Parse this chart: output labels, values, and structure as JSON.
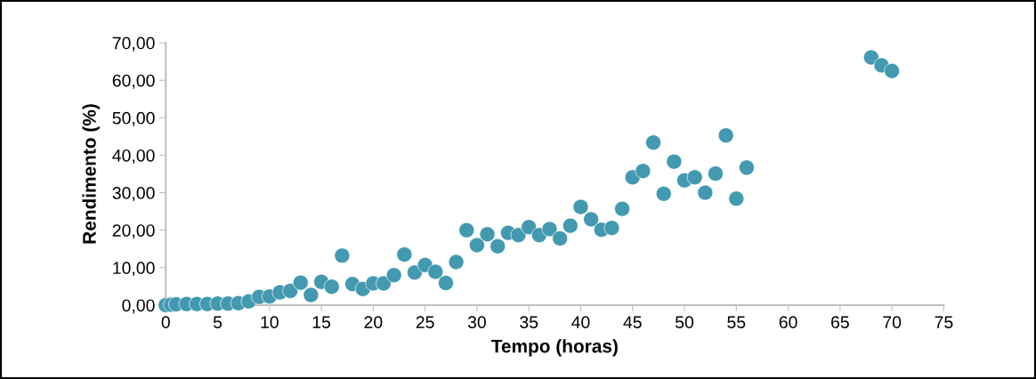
{
  "chart_data": {
    "type": "scatter",
    "xlabel": "Tempo (horas)",
    "ylabel": "Rendimento (%)",
    "x": [
      0,
      0.5,
      1,
      2,
      3,
      4,
      5,
      6,
      7,
      8,
      9,
      10,
      11,
      12,
      13,
      14,
      15,
      16,
      17,
      18,
      19,
      20,
      21,
      22,
      23,
      24,
      25,
      26,
      27,
      28,
      29,
      30,
      31,
      32,
      33,
      34,
      35,
      36,
      37,
      38,
      39,
      40,
      41,
      42,
      43,
      44,
      45,
      46,
      47,
      48,
      49,
      50,
      51,
      52,
      53,
      54,
      55,
      56,
      68,
      69,
      70
    ],
    "series": [
      {
        "color": "#4399b0",
        "values": [
          0.0,
          0.1,
          0.2,
          0.3,
          0.3,
          0.3,
          0.4,
          0.4,
          0.5,
          1.0,
          2.2,
          2.3,
          3.4,
          3.8,
          6.0,
          2.7,
          6.2,
          4.9,
          13.2,
          5.6,
          4.3,
          5.8,
          5.8,
          8.0,
          13.5,
          8.7,
          10.7,
          8.9,
          5.9,
          11.5,
          20.0,
          16.0,
          18.9,
          15.7,
          19.3,
          18.7,
          20.8,
          18.7,
          20.3,
          17.8,
          21.2,
          26.2,
          22.9,
          20.1,
          20.6,
          25.7,
          34.1,
          35.8,
          43.4,
          29.7,
          38.3,
          33.3,
          34.1,
          30.0,
          35.1,
          45.3,
          28.4,
          36.7,
          66.1,
          64.0,
          62.5
        ]
      }
    ],
    "xlim": [
      0,
      75
    ],
    "xticks": [
      0,
      5,
      10,
      15,
      20,
      25,
      30,
      35,
      40,
      45,
      50,
      55,
      60,
      65,
      70,
      75
    ],
    "ylim": [
      0,
      70
    ],
    "yticks": [
      {
        "value": 0,
        "label": "0,00"
      },
      {
        "value": 10,
        "label": "10,00"
      },
      {
        "value": 20,
        "label": "20,00"
      },
      {
        "value": 30,
        "label": "30,00"
      },
      {
        "value": 40,
        "label": "40,00"
      },
      {
        "value": 50,
        "label": "50,00"
      },
      {
        "value": 60,
        "label": "60,00"
      },
      {
        "value": 70,
        "label": "70,00"
      }
    ],
    "marker": "circle",
    "grid": false,
    "legend": false
  }
}
